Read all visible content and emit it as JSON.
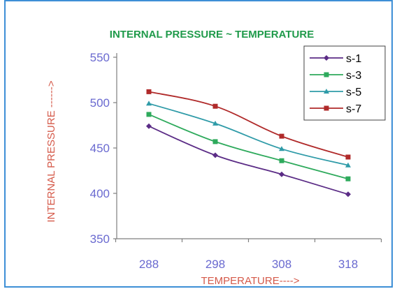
{
  "chart_data": {
    "type": "line",
    "title": "INTERNAL PRESSURE  ~  TEMPERATURE",
    "xlabel": "TEMPERATURE---->",
    "ylabel": "INTERNAL PRESSURE  ------>",
    "categories": [
      "288",
      "298",
      "308",
      "318"
    ],
    "ylim": [
      350,
      550
    ],
    "yticks": [
      350,
      400,
      450,
      500,
      550
    ],
    "grid": false,
    "legend_position": "top-right",
    "series": [
      {
        "name": "s-1",
        "values": [
          474,
          442,
          421,
          399
        ],
        "color": "#5b2c86",
        "marker": "diamond"
      },
      {
        "name": "s-3",
        "values": [
          487,
          457,
          436,
          416
        ],
        "color": "#2eaa5c",
        "marker": "square"
      },
      {
        "name": "s-5",
        "values": [
          499,
          477,
          449,
          431
        ],
        "color": "#2f9ba8",
        "marker": "triangle"
      },
      {
        "name": "s-7",
        "values": [
          512,
          496,
          463,
          440
        ],
        "color": "#b02a2a",
        "marker": "square"
      }
    ],
    "colors": {
      "title": "#1f9a4a",
      "tick": "#6a6ad0",
      "ylabel": "#d55a4a",
      "xlabel": "#d55a4a",
      "axis": "#7f7f7f",
      "frame": "#3d8fd6"
    }
  }
}
